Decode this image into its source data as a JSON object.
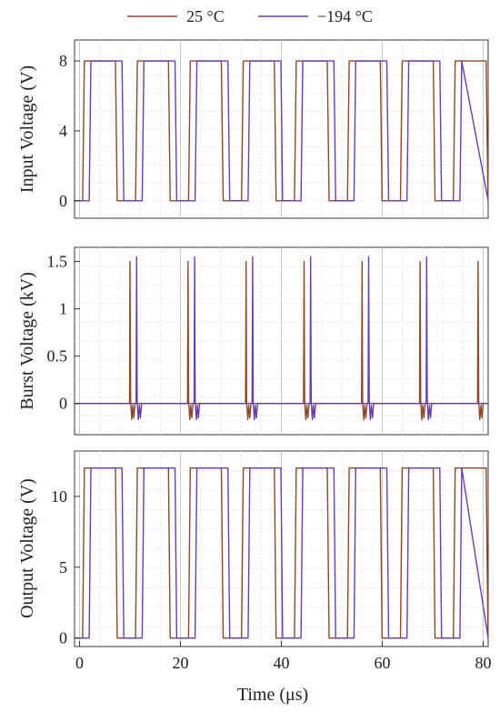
{
  "chart_data": [
    {
      "type": "line",
      "ylabel": "Input Voltage (V)",
      "ylim": [
        -1,
        9.2
      ],
      "xlim": [
        -1,
        81
      ],
      "yticks": [
        "0",
        "4",
        "8"
      ],
      "grid": true,
      "series": [
        {
          "name": "25 °C",
          "color": "#8b4a2b",
          "period": 10.5,
          "phase": 0.6,
          "duty": 0.62,
          "low": 0,
          "high": 8
        },
        {
          "name": "−194 °C",
          "color": "#6a3fa8",
          "period": 10.5,
          "phase": 1.9,
          "duty": 0.62,
          "low": 0,
          "high": 8
        }
      ]
    },
    {
      "type": "line",
      "ylabel": "Burst Voltage (kV)",
      "ylim": [
        -0.33,
        1.65
      ],
      "xlim": [
        -1,
        81
      ],
      "yticks": [
        "0",
        "0.5",
        "1",
        "1.5"
      ],
      "grid": true,
      "series": [
        {
          "name": "25 °C",
          "color": "#8b4a2b",
          "spike_x": [
            10.0,
            21.5,
            33.0,
            44.5,
            56.0,
            67.5,
            79.0
          ],
          "spike_peak": 1.5,
          "undershoot": -0.17,
          "baseline": 0
        },
        {
          "name": "−194 °C",
          "color": "#6a3fa8",
          "spike_x": [
            11.3,
            22.8,
            34.3,
            45.8,
            57.3,
            68.8
          ],
          "spike_peak": 1.55,
          "undershoot": -0.17,
          "baseline": 0
        }
      ]
    },
    {
      "type": "line",
      "ylabel": "Output Voltage (V)",
      "xlabel": "Time (μs)",
      "ylim": [
        -0.6,
        13.2
      ],
      "xlim": [
        -1,
        81
      ],
      "yticks": [
        "0",
        "5",
        "10"
      ],
      "xticks": [
        "0",
        "20",
        "40",
        "60",
        "80"
      ],
      "grid": true,
      "series": [
        {
          "name": "25 °C",
          "color": "#8b4a2b",
          "period": 10.5,
          "phase": 0.6,
          "duty": 0.62,
          "low": 0,
          "high": 12
        },
        {
          "name": "−194 °C",
          "color": "#6a3fa8",
          "period": 10.5,
          "phase": 1.9,
          "duty": 0.62,
          "low": 0,
          "high": 12
        }
      ]
    }
  ],
  "legend": {
    "placement": "top-center",
    "items": [
      {
        "label": "25 °C",
        "color": "#8b4a2b"
      },
      {
        "label": "−194 °C",
        "color": "#6a3fa8"
      }
    ]
  }
}
